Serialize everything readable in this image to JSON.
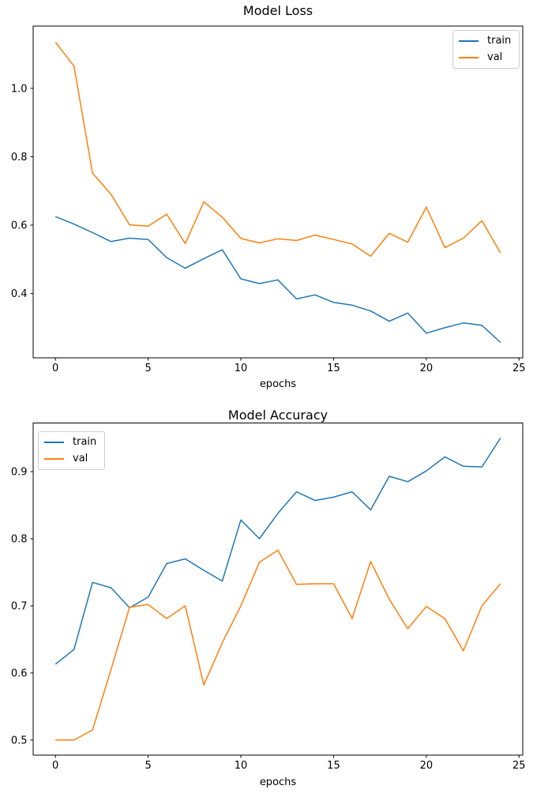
{
  "figure": {
    "background": "#ffffff",
    "text_color": "#000000",
    "spine_color": "#000000"
  },
  "chart_data": [
    {
      "type": "line",
      "title": "Model Loss",
      "xlabel": "epochs",
      "ylabel": "",
      "grid": false,
      "legend_position": "upper right",
      "legend_entries": [
        "train",
        "val"
      ],
      "x": [
        0,
        1,
        2,
        3,
        4,
        5,
        6,
        7,
        8,
        9,
        10,
        11,
        12,
        13,
        14,
        15,
        16,
        17,
        18,
        19,
        20,
        21,
        22,
        23,
        24
      ],
      "xlim": [
        -1.2,
        25.2
      ],
      "ylim": [
        0.212,
        1.182
      ],
      "xticks": {
        "values": [
          0,
          5,
          10,
          15,
          20,
          25
        ],
        "labels": [
          "0",
          "5",
          "10",
          "15",
          "20",
          "25"
        ]
      },
      "yticks": {
        "values": [
          0.4,
          0.6,
          0.8,
          1.0
        ],
        "labels": [
          "0.4",
          "0.6",
          "0.8",
          "1.0"
        ]
      },
      "series": [
        {
          "name": "train",
          "color": "#1f77b4",
          "values": [
            0.625,
            0.603,
            0.578,
            0.552,
            0.562,
            0.558,
            0.505,
            0.474,
            0.502,
            0.528,
            0.443,
            0.429,
            0.44,
            0.384,
            0.396,
            0.374,
            0.366,
            0.349,
            0.319,
            0.343,
            0.284,
            0.3,
            0.314,
            0.307,
            0.257
          ]
        },
        {
          "name": "val",
          "color": "#ff7f0e",
          "values": [
            1.135,
            1.065,
            0.752,
            0.69,
            0.601,
            0.597,
            0.632,
            0.546,
            0.668,
            0.623,
            0.561,
            0.548,
            0.56,
            0.555,
            0.571,
            0.558,
            0.545,
            0.509,
            0.576,
            0.55,
            0.653,
            0.534,
            0.562,
            0.613,
            0.519
          ]
        }
      ]
    },
    {
      "type": "line",
      "title": "Model Accuracy",
      "xlabel": "epochs",
      "ylabel": "",
      "grid": false,
      "legend_position": "upper left",
      "legend_entries": [
        "train",
        "val"
      ],
      "x": [
        0,
        1,
        2,
        3,
        4,
        5,
        6,
        7,
        8,
        9,
        10,
        11,
        12,
        13,
        14,
        15,
        16,
        17,
        18,
        19,
        20,
        21,
        22,
        23,
        24
      ],
      "xlim": [
        -1.2,
        25.2
      ],
      "ylim": [
        0.4775,
        0.9725
      ],
      "xticks": {
        "values": [
          0,
          5,
          10,
          15,
          20,
          25
        ],
        "labels": [
          "0",
          "5",
          "10",
          "15",
          "20",
          "25"
        ]
      },
      "yticks": {
        "values": [
          0.5,
          0.6,
          0.7,
          0.8,
          0.9
        ],
        "labels": [
          "0.5",
          "0.6",
          "0.7",
          "0.8",
          "0.9"
        ]
      },
      "series": [
        {
          "name": "train",
          "color": "#1f77b4",
          "values": [
            0.613,
            0.635,
            0.735,
            0.727,
            0.697,
            0.713,
            0.763,
            0.77,
            0.753,
            0.737,
            0.828,
            0.8,
            0.838,
            0.87,
            0.857,
            0.862,
            0.87,
            0.843,
            0.893,
            0.885,
            0.901,
            0.922,
            0.908,
            0.907,
            0.95
          ]
        },
        {
          "name": "val",
          "color": "#ff7f0e",
          "values": [
            0.5,
            0.5,
            0.515,
            0.605,
            0.698,
            0.702,
            0.681,
            0.7,
            0.582,
            0.645,
            0.7,
            0.765,
            0.783,
            0.732,
            0.733,
            0.733,
            0.681,
            0.766,
            0.71,
            0.666,
            0.699,
            0.681,
            0.633,
            0.7,
            0.733
          ]
        }
      ]
    }
  ]
}
